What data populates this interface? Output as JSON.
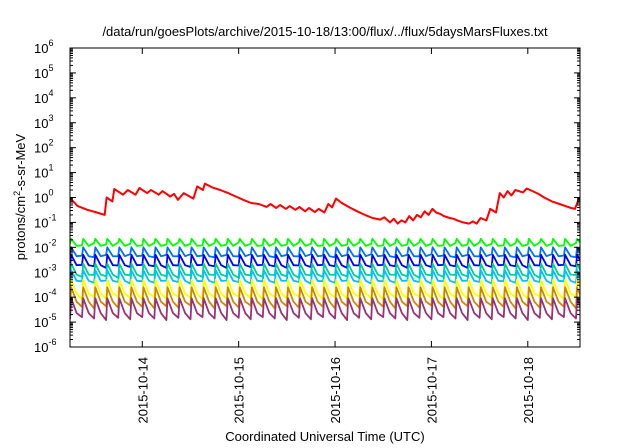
{
  "chart_data": {
    "type": "line",
    "title": "/data/run/goesPlots/archive/2015-10-18/13:00/flux/../flux/5daysMarsFluxes.txt",
    "xlabel": "Coordinated Universal Time (UTC)",
    "ylabel": "protons/cm²-s-sr-MeV",
    "y_scale": "log",
    "ylim": [
      1e-06,
      1000000.0
    ],
    "x_range_days": [
      "2015-10-13T06:00",
      "2015-10-18T13:00"
    ],
    "x_ticks": [
      "2015-10-14",
      "2015-10-15",
      "2015-10-16",
      "2015-10-17",
      "2015-10-18"
    ],
    "y_ticks": [
      {
        "base": "10",
        "exp": "-6"
      },
      {
        "base": "10",
        "exp": "-5"
      },
      {
        "base": "10",
        "exp": "-4"
      },
      {
        "base": "10",
        "exp": "-3"
      },
      {
        "base": "10",
        "exp": "-2"
      },
      {
        "base": "10",
        "exp": "-1"
      },
      {
        "base": "10",
        "exp": "0"
      },
      {
        "base": "10",
        "exp": "1"
      },
      {
        "base": "10",
        "exp": "2"
      },
      {
        "base": "10",
        "exp": "3"
      },
      {
        "base": "10",
        "exp": "4"
      },
      {
        "base": "10",
        "exp": "5"
      },
      {
        "base": "10",
        "exp": "6"
      }
    ],
    "grid": false,
    "legend": "none",
    "series": [
      {
        "color": "#ff0000",
        "points": [
          [
            0.0,
            0.95
          ],
          [
            0.08,
            0.45
          ],
          [
            0.18,
            0.32
          ],
          [
            0.28,
            0.25
          ],
          [
            0.36,
            0.2
          ],
          [
            0.38,
            1.0
          ],
          [
            0.44,
            0.7
          ],
          [
            0.46,
            2.2
          ],
          [
            0.55,
            1.3
          ],
          [
            0.6,
            2.0
          ],
          [
            0.68,
            1.3
          ],
          [
            0.72,
            2.4
          ],
          [
            0.8,
            1.5
          ],
          [
            0.84,
            2.0
          ],
          [
            0.92,
            1.3
          ],
          [
            0.96,
            1.8
          ],
          [
            1.04,
            1.1
          ],
          [
            1.08,
            1.4
          ],
          [
            1.12,
            0.8
          ],
          [
            1.18,
            1.5
          ],
          [
            1.28,
            0.9
          ],
          [
            1.32,
            2.8
          ],
          [
            1.38,
            2.0
          ],
          [
            1.4,
            3.6
          ],
          [
            1.48,
            2.5
          ],
          [
            1.56,
            2.0
          ],
          [
            1.64,
            1.5
          ],
          [
            1.72,
            1.1
          ],
          [
            1.8,
            0.8
          ],
          [
            1.88,
            0.6
          ],
          [
            1.96,
            0.55
          ],
          [
            2.04,
            0.42
          ],
          [
            2.08,
            0.55
          ],
          [
            2.14,
            0.38
          ],
          [
            2.18,
            0.5
          ],
          [
            2.24,
            0.35
          ],
          [
            2.28,
            0.45
          ],
          [
            2.34,
            0.32
          ],
          [
            2.38,
            0.42
          ],
          [
            2.44,
            0.28
          ],
          [
            2.48,
            0.38
          ],
          [
            2.54,
            0.26
          ],
          [
            2.58,
            0.35
          ],
          [
            2.64,
            0.25
          ],
          [
            2.68,
            0.55
          ],
          [
            2.72,
            0.4
          ],
          [
            2.76,
            0.9
          ],
          [
            2.82,
            0.6
          ],
          [
            2.9,
            0.4
          ],
          [
            2.98,
            0.28
          ],
          [
            3.06,
            0.2
          ],
          [
            3.14,
            0.15
          ],
          [
            3.22,
            0.13
          ],
          [
            3.26,
            0.16
          ],
          [
            3.32,
            0.1
          ],
          [
            3.36,
            0.14
          ],
          [
            3.4,
            0.09
          ],
          [
            3.44,
            0.12
          ],
          [
            3.48,
            0.1
          ],
          [
            3.52,
            0.18
          ],
          [
            3.56,
            0.12
          ],
          [
            3.6,
            0.2
          ],
          [
            3.64,
            0.16
          ],
          [
            3.68,
            0.28
          ],
          [
            3.72,
            0.2
          ],
          [
            3.76,
            0.35
          ],
          [
            3.8,
            0.25
          ],
          [
            3.84,
            0.22
          ],
          [
            3.88,
            0.18
          ],
          [
            3.94,
            0.15
          ],
          [
            3.98,
            0.14
          ],
          [
            4.02,
            0.12
          ],
          [
            4.08,
            0.1
          ],
          [
            4.14,
            0.09
          ],
          [
            4.18,
            0.11
          ],
          [
            4.22,
            0.09
          ],
          [
            4.26,
            0.15
          ],
          [
            4.32,
            0.12
          ],
          [
            4.36,
            0.35
          ],
          [
            4.42,
            0.25
          ],
          [
            4.46,
            1.5
          ],
          [
            4.5,
            1.0
          ],
          [
            4.54,
            1.8
          ],
          [
            4.58,
            1.2
          ],
          [
            4.62,
            2.0
          ],
          [
            4.7,
            1.6
          ],
          [
            4.74,
            2.3
          ],
          [
            4.8,
            1.8
          ],
          [
            4.86,
            1.4
          ],
          [
            4.92,
            1.0
          ],
          [
            5.0,
            0.7
          ],
          [
            5.08,
            0.55
          ],
          [
            5.14,
            0.45
          ],
          [
            5.2,
            0.38
          ],
          [
            5.24,
            0.35
          ],
          [
            5.28,
            0.9
          ],
          [
            5.32,
            0.6
          ],
          [
            5.36,
            1.0
          ],
          [
            5.4,
            0.8
          ]
        ]
      },
      {
        "color": "#00ff00",
        "base": 0.012,
        "peak": 0.022
      },
      {
        "color": "#0070ff",
        "base": 0.004,
        "peak": 0.01
      },
      {
        "color": "#0000ff",
        "base": 0.0015,
        "peak": 0.005
      },
      {
        "color": "#00d090",
        "base": 0.0006,
        "peak": 0.0022
      },
      {
        "color": "#00c0ff",
        "base": 0.00035,
        "peak": 0.0012
      },
      {
        "color": "#ffff00",
        "base": 8e-05,
        "peak": 0.0005
      },
      {
        "color": "#cc8800",
        "base": 3.5e-05,
        "peak": 0.00025
      },
      {
        "color": "#993377",
        "base": 1.2e-05,
        "peak": 9e-05
      }
    ],
    "oscillation": {
      "period_days": 0.125,
      "t_start": 0.0,
      "t_end": 5.4
    }
  }
}
